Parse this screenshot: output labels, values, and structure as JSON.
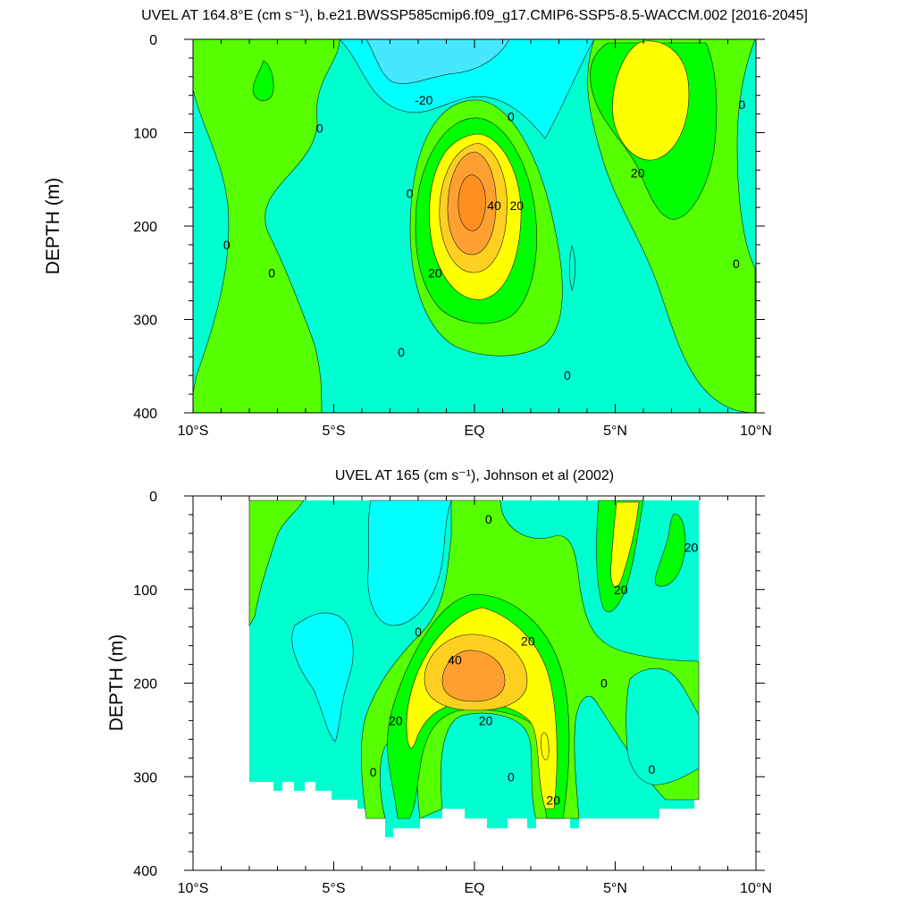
{
  "chart_data": [
    {
      "type": "contour",
      "title": "UVEL AT 164.8°E (cm s⁻¹), b.e21.BWSSP585cmip6.f09_g17.CMIP6-SSP5-8.5-WACCM.002 [2016-2045]",
      "xlabel": "",
      "ylabel": "DEPTH (m)",
      "xlim": [
        -10,
        10
      ],
      "ylim": [
        400,
        0
      ],
      "x_ticks": [
        -10,
        -5,
        0,
        5,
        10
      ],
      "x_tick_labels": [
        "10°S",
        "5°S",
        "EQ",
        "5°N",
        "10°N"
      ],
      "y_ticks": [
        0,
        100,
        200,
        300,
        400
      ],
      "y_tick_labels": [
        "0",
        "100",
        "200",
        "300",
        "400"
      ],
      "contour_interval": 10,
      "levels": [
        -20,
        -10,
        0,
        10,
        20,
        30,
        40,
        50
      ],
      "level_colors": [
        "#46e8ff",
        "#00ffff",
        "#00ffd0",
        "#55ff00",
        "#00ff00",
        "#ffff00",
        "#ffd020",
        "#ffa030",
        "#ff9020"
      ],
      "contour_labels": [
        {
          "text": "-20",
          "lat": -1.8,
          "depth": 65
        },
        {
          "text": "0",
          "lat": 1.3,
          "depth": 83
        },
        {
          "text": "0",
          "lat": -5.5,
          "depth": 95
        },
        {
          "text": "0",
          "lat": 9.5,
          "depth": 70
        },
        {
          "text": "0",
          "lat": -8.8,
          "depth": 220
        },
        {
          "text": "0",
          "lat": -7.2,
          "depth": 250
        },
        {
          "text": "0",
          "lat": -2.3,
          "depth": 165
        },
        {
          "text": "0",
          "lat": 9.3,
          "depth": 240
        },
        {
          "text": "0",
          "lat": -2.6,
          "depth": 335
        },
        {
          "text": "0",
          "lat": 3.3,
          "depth": 360
        },
        {
          "text": "20",
          "lat": 5.8,
          "depth": 143
        },
        {
          "text": "40",
          "lat": 0.7,
          "depth": 178
        },
        {
          "text": "20",
          "lat": 1.5,
          "depth": 178
        },
        {
          "text": "20",
          "lat": -1.4,
          "depth": 250
        }
      ]
    },
    {
      "type": "contour",
      "title": "UVEL AT 165 (cm s⁻¹), Johnson et al (2002)",
      "xlabel": "",
      "ylabel": "DEPTH (m)",
      "xlim": [
        -10,
        10
      ],
      "ylim": [
        400,
        0
      ],
      "x_ticks": [
        -10,
        -5,
        0,
        5,
        10
      ],
      "x_tick_labels": [
        "10°S",
        "5°S",
        "EQ",
        "5°N",
        "10°N"
      ],
      "y_ticks": [
        0,
        100,
        200,
        300,
        400
      ],
      "y_tick_labels": [
        "0",
        "100",
        "200",
        "300",
        "400"
      ],
      "contour_interval": 10,
      "levels": [
        -10,
        0,
        10,
        20,
        30,
        40,
        50
      ],
      "level_colors": [
        "#00ffff",
        "#00ffd0",
        "#55ff00",
        "#00ff00",
        "#ffff00",
        "#ffd020",
        "#ffa030"
      ],
      "data_extent": {
        "lat": [
          -8,
          8
        ],
        "depth": [
          0,
          365
        ]
      },
      "contour_labels": [
        {
          "text": "0",
          "lat": 0.5,
          "depth": 25
        },
        {
          "text": "20",
          "lat": 7.7,
          "depth": 55
        },
        {
          "text": "20",
          "lat": 5.2,
          "depth": 100
        },
        {
          "text": "0",
          "lat": -2.0,
          "depth": 145
        },
        {
          "text": "20",
          "lat": 1.9,
          "depth": 155
        },
        {
          "text": "40",
          "lat": -0.7,
          "depth": 175
        },
        {
          "text": "0",
          "lat": 4.6,
          "depth": 200
        },
        {
          "text": "20",
          "lat": -2.8,
          "depth": 240
        },
        {
          "text": "20",
          "lat": 0.4,
          "depth": 240
        },
        {
          "text": "0",
          "lat": -3.6,
          "depth": 295
        },
        {
          "text": "0",
          "lat": 1.3,
          "depth": 300
        },
        {
          "text": "0",
          "lat": 6.3,
          "depth": 292
        },
        {
          "text": "20",
          "lat": 2.8,
          "depth": 325
        }
      ]
    }
  ]
}
